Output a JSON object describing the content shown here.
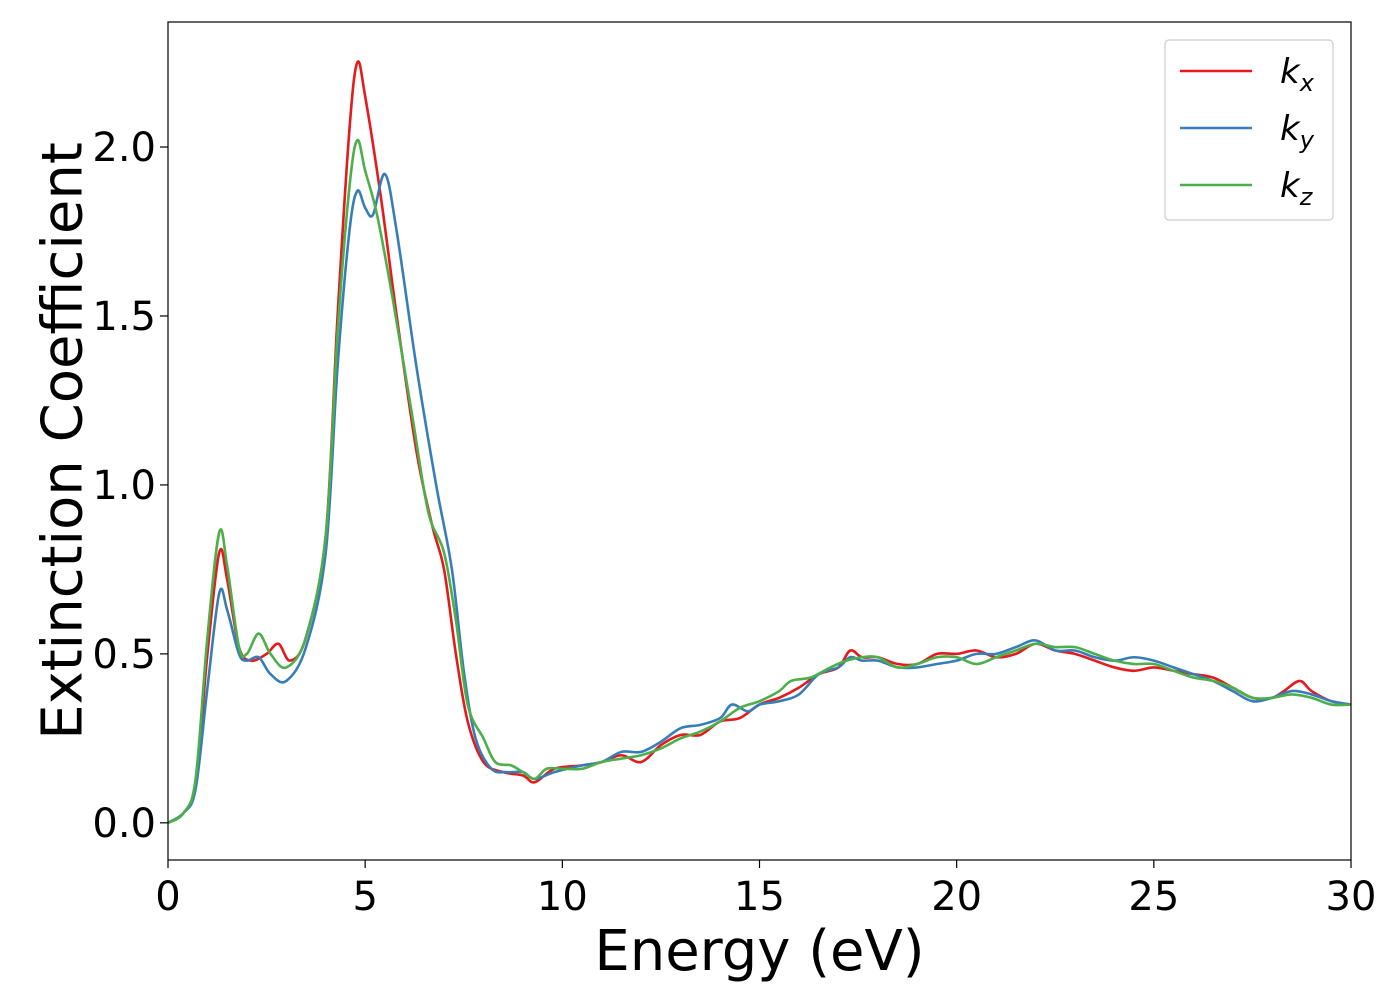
{
  "chart_data": {
    "type": "line",
    "title": "",
    "xlabel": "Energy (eV)",
    "ylabel": "Extinction Coefficient",
    "xlim": [
      0,
      30
    ],
    "ylim": [
      -0.11,
      2.37
    ],
    "xticks": [
      0,
      5,
      10,
      15,
      20,
      25,
      30
    ],
    "xtick_labels": [
      "0",
      "5",
      "10",
      "15",
      "20",
      "25",
      "30"
    ],
    "yticks": [
      0.0,
      0.5,
      1.0,
      1.5,
      2.0
    ],
    "ytick_labels": [
      "0.0",
      "0.5",
      "1.0",
      "1.5",
      "2.0"
    ],
    "grid": false,
    "legend_position": "top-right",
    "series": [
      {
        "name": "k_x",
        "legend_base": "k",
        "legend_sub": "x",
        "color": "#e41a1c",
        "points": [
          [
            0,
            0.0
          ],
          [
            0.4,
            0.03
          ],
          [
            0.7,
            0.12
          ],
          [
            1.0,
            0.5
          ],
          [
            1.3,
            0.8
          ],
          [
            1.5,
            0.72
          ],
          [
            1.8,
            0.52
          ],
          [
            2.1,
            0.48
          ],
          [
            2.5,
            0.5
          ],
          [
            2.8,
            0.53
          ],
          [
            3.1,
            0.48
          ],
          [
            3.5,
            0.55
          ],
          [
            4.0,
            0.85
          ],
          [
            4.3,
            1.5
          ],
          [
            4.6,
            2.05
          ],
          [
            4.8,
            2.25
          ],
          [
            5.0,
            2.15
          ],
          [
            5.4,
            1.85
          ],
          [
            5.8,
            1.5
          ],
          [
            6.3,
            1.1
          ],
          [
            6.7,
            0.88
          ],
          [
            7.0,
            0.75
          ],
          [
            7.3,
            0.5
          ],
          [
            7.6,
            0.3
          ],
          [
            8.0,
            0.18
          ],
          [
            8.5,
            0.15
          ],
          [
            9.0,
            0.14
          ],
          [
            9.3,
            0.12
          ],
          [
            9.8,
            0.16
          ],
          [
            10.5,
            0.17
          ],
          [
            11.0,
            0.18
          ],
          [
            11.5,
            0.2
          ],
          [
            12.0,
            0.18
          ],
          [
            12.5,
            0.23
          ],
          [
            13.0,
            0.26
          ],
          [
            13.5,
            0.26
          ],
          [
            14.0,
            0.3
          ],
          [
            14.5,
            0.31
          ],
          [
            15.0,
            0.35
          ],
          [
            15.5,
            0.37
          ],
          [
            16.0,
            0.4
          ],
          [
            16.5,
            0.44
          ],
          [
            17.0,
            0.46
          ],
          [
            17.3,
            0.51
          ],
          [
            17.6,
            0.49
          ],
          [
            18.0,
            0.49
          ],
          [
            18.5,
            0.47
          ],
          [
            19.0,
            0.47
          ],
          [
            19.5,
            0.5
          ],
          [
            20.0,
            0.5
          ],
          [
            20.5,
            0.51
          ],
          [
            21.0,
            0.49
          ],
          [
            21.5,
            0.5
          ],
          [
            22.0,
            0.53
          ],
          [
            22.5,
            0.51
          ],
          [
            23.0,
            0.5
          ],
          [
            23.5,
            0.48
          ],
          [
            24.0,
            0.46
          ],
          [
            24.5,
            0.45
          ],
          [
            25.0,
            0.46
          ],
          [
            25.5,
            0.45
          ],
          [
            26.0,
            0.44
          ],
          [
            26.5,
            0.43
          ],
          [
            27.0,
            0.4
          ],
          [
            27.5,
            0.37
          ],
          [
            28.0,
            0.37
          ],
          [
            28.3,
            0.39
          ],
          [
            28.7,
            0.42
          ],
          [
            29.0,
            0.39
          ],
          [
            29.5,
            0.36
          ],
          [
            30.0,
            0.35
          ]
        ]
      },
      {
        "name": "k_y",
        "legend_base": "k",
        "legend_sub": "y",
        "color": "#377eb8",
        "points": [
          [
            0,
            0.0
          ],
          [
            0.4,
            0.03
          ],
          [
            0.7,
            0.1
          ],
          [
            1.0,
            0.4
          ],
          [
            1.3,
            0.68
          ],
          [
            1.5,
            0.63
          ],
          [
            1.8,
            0.5
          ],
          [
            2.0,
            0.48
          ],
          [
            2.3,
            0.49
          ],
          [
            2.6,
            0.44
          ],
          [
            3.0,
            0.42
          ],
          [
            3.5,
            0.52
          ],
          [
            4.0,
            0.8
          ],
          [
            4.3,
            1.35
          ],
          [
            4.6,
            1.75
          ],
          [
            4.8,
            1.87
          ],
          [
            5.0,
            1.82
          ],
          [
            5.2,
            1.8
          ],
          [
            5.5,
            1.92
          ],
          [
            5.8,
            1.75
          ],
          [
            6.3,
            1.35
          ],
          [
            6.8,
            1.0
          ],
          [
            7.2,
            0.75
          ],
          [
            7.5,
            0.45
          ],
          [
            7.8,
            0.25
          ],
          [
            8.2,
            0.16
          ],
          [
            8.6,
            0.15
          ],
          [
            9.0,
            0.15
          ],
          [
            9.3,
            0.13
          ],
          [
            9.8,
            0.15
          ],
          [
            10.5,
            0.17
          ],
          [
            11.0,
            0.18
          ],
          [
            11.5,
            0.21
          ],
          [
            12.0,
            0.21
          ],
          [
            12.5,
            0.24
          ],
          [
            13.0,
            0.28
          ],
          [
            13.5,
            0.29
          ],
          [
            14.0,
            0.31
          ],
          [
            14.3,
            0.35
          ],
          [
            14.7,
            0.33
          ],
          [
            15.0,
            0.35
          ],
          [
            15.5,
            0.36
          ],
          [
            16.0,
            0.38
          ],
          [
            16.5,
            0.44
          ],
          [
            17.0,
            0.46
          ],
          [
            17.3,
            0.49
          ],
          [
            17.6,
            0.48
          ],
          [
            18.0,
            0.48
          ],
          [
            18.5,
            0.46
          ],
          [
            19.0,
            0.46
          ],
          [
            19.5,
            0.47
          ],
          [
            20.0,
            0.48
          ],
          [
            20.5,
            0.5
          ],
          [
            21.0,
            0.5
          ],
          [
            21.5,
            0.52
          ],
          [
            22.0,
            0.54
          ],
          [
            22.5,
            0.51
          ],
          [
            23.0,
            0.51
          ],
          [
            23.5,
            0.49
          ],
          [
            24.0,
            0.48
          ],
          [
            24.5,
            0.49
          ],
          [
            25.0,
            0.48
          ],
          [
            25.5,
            0.46
          ],
          [
            26.0,
            0.44
          ],
          [
            26.5,
            0.42
          ],
          [
            27.0,
            0.39
          ],
          [
            27.5,
            0.36
          ],
          [
            28.0,
            0.37
          ],
          [
            28.5,
            0.39
          ],
          [
            29.0,
            0.38
          ],
          [
            29.5,
            0.36
          ],
          [
            30.0,
            0.35
          ]
        ]
      },
      {
        "name": "k_z",
        "legend_base": "k",
        "legend_sub": "z",
        "color": "#4daf4a",
        "points": [
          [
            0,
            0.0
          ],
          [
            0.4,
            0.03
          ],
          [
            0.7,
            0.13
          ],
          [
            1.0,
            0.55
          ],
          [
            1.3,
            0.86
          ],
          [
            1.5,
            0.76
          ],
          [
            1.8,
            0.52
          ],
          [
            2.0,
            0.5
          ],
          [
            2.3,
            0.56
          ],
          [
            2.6,
            0.5
          ],
          [
            3.0,
            0.46
          ],
          [
            3.5,
            0.55
          ],
          [
            4.0,
            0.85
          ],
          [
            4.3,
            1.45
          ],
          [
            4.6,
            1.88
          ],
          [
            4.8,
            2.02
          ],
          [
            5.0,
            1.93
          ],
          [
            5.3,
            1.8
          ],
          [
            5.7,
            1.55
          ],
          [
            6.2,
            1.2
          ],
          [
            6.6,
            0.92
          ],
          [
            7.0,
            0.8
          ],
          [
            7.3,
            0.6
          ],
          [
            7.6,
            0.35
          ],
          [
            8.0,
            0.25
          ],
          [
            8.3,
            0.18
          ],
          [
            8.7,
            0.17
          ],
          [
            9.0,
            0.15
          ],
          [
            9.3,
            0.13
          ],
          [
            9.6,
            0.16
          ],
          [
            10.0,
            0.16
          ],
          [
            10.5,
            0.16
          ],
          [
            11.0,
            0.18
          ],
          [
            11.5,
            0.19
          ],
          [
            12.0,
            0.2
          ],
          [
            12.5,
            0.22
          ],
          [
            13.0,
            0.25
          ],
          [
            13.5,
            0.27
          ],
          [
            14.0,
            0.3
          ],
          [
            14.5,
            0.34
          ],
          [
            15.0,
            0.36
          ],
          [
            15.5,
            0.39
          ],
          [
            15.8,
            0.42
          ],
          [
            16.3,
            0.43
          ],
          [
            16.8,
            0.46
          ],
          [
            17.2,
            0.48
          ],
          [
            17.6,
            0.49
          ],
          [
            18.0,
            0.49
          ],
          [
            18.5,
            0.46
          ],
          [
            19.0,
            0.47
          ],
          [
            19.5,
            0.49
          ],
          [
            20.0,
            0.49
          ],
          [
            20.5,
            0.47
          ],
          [
            21.0,
            0.49
          ],
          [
            21.5,
            0.51
          ],
          [
            22.0,
            0.53
          ],
          [
            22.5,
            0.52
          ],
          [
            23.0,
            0.52
          ],
          [
            23.5,
            0.5
          ],
          [
            24.0,
            0.48
          ],
          [
            24.5,
            0.47
          ],
          [
            25.0,
            0.47
          ],
          [
            25.5,
            0.45
          ],
          [
            26.0,
            0.43
          ],
          [
            26.5,
            0.42
          ],
          [
            27.0,
            0.4
          ],
          [
            27.5,
            0.37
          ],
          [
            28.0,
            0.37
          ],
          [
            28.5,
            0.38
          ],
          [
            29.0,
            0.37
          ],
          [
            29.5,
            0.35
          ],
          [
            30.0,
            0.35
          ]
        ]
      }
    ]
  }
}
